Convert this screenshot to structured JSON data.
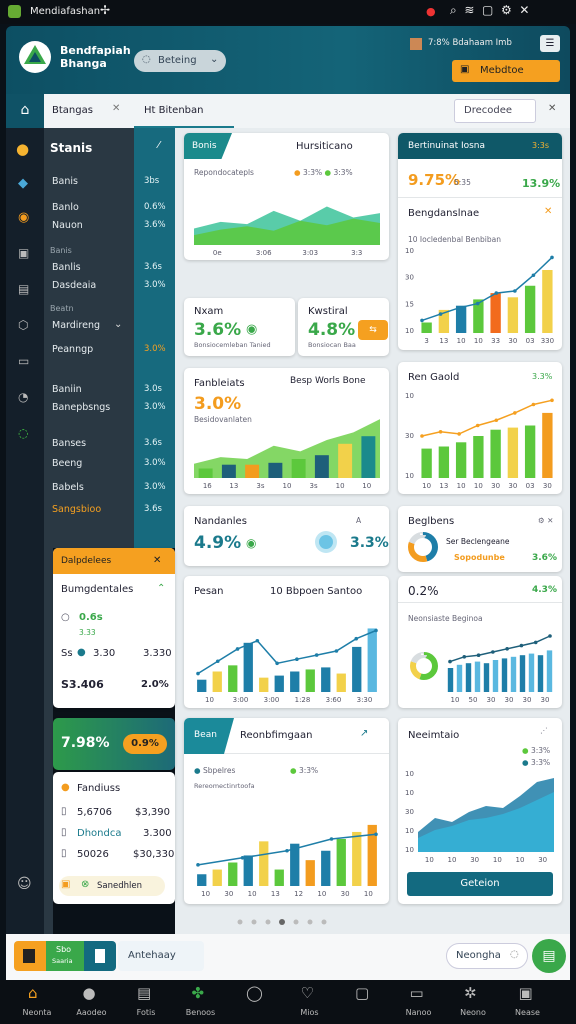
{
  "status_bar": {
    "app": "Mendiafashan"
  },
  "header": {
    "title": "Bendfapiah Bhanga",
    "selector": "Beteing",
    "status": "7:8% Bdahaam Imb",
    "action": "Mebdtoe"
  },
  "tabs": {
    "left": "Btangas",
    "active": "Ht Bitenban",
    "right": "Drecodee"
  },
  "sidebar": {
    "title": "Stanis",
    "items": [
      {
        "label": "Banis",
        "value": "3bs"
      },
      {
        "label": "Banlo",
        "value": "0.6%"
      },
      {
        "label": "Nauon",
        "value": "3.6%"
      },
      {
        "label": "Banis"
      },
      {
        "label": "Banlis",
        "value": "3.6s"
      },
      {
        "label": "Dasdeaia",
        "value": "3.0%"
      },
      {
        "label": "Beatn"
      },
      {
        "label": "Mardireng"
      },
      {
        "label": "Peanngp",
        "value": "3.0%"
      },
      {
        "label": "Baniin",
        "value": "3.0s"
      },
      {
        "label": "Banepbsngs",
        "value": "3.0%"
      },
      {
        "label": "Banses",
        "value": "3.6s"
      },
      {
        "label": "Beeng",
        "value": "3.0%"
      },
      {
        "label": "Babels",
        "value": "3.0%"
      },
      {
        "label": "Sangsbioo",
        "value": "3.6s"
      }
    ]
  },
  "card_a": {
    "tag": "Bonis",
    "title": "Hursiticano",
    "subtitle": "Repondocatepls",
    "legend": [
      "3:3%",
      "3:3%"
    ],
    "chart": {
      "ylim": [
        0,
        80
      ],
      "areas": [
        {
          "color": "#3cc39a",
          "values": [
            30,
            42,
            38,
            62,
            44,
            70,
            50,
            58
          ]
        },
        {
          "color": "#5cc83c",
          "values": [
            18,
            28,
            34,
            26,
            44,
            36,
            48,
            40
          ]
        }
      ],
      "x_labels": [
        "0e",
        "3:06",
        "3:03",
        "3:3"
      ]
    }
  },
  "card_b": {
    "title": "Bertinuinat Iosna",
    "badge": "3:3s",
    "metric": "9.75%",
    "metric_sub": "5:35",
    "change": "13.9%",
    "section": "Bengdanslnae",
    "chart_title": "10 Iocledenbal Benbiban",
    "chart": {
      "ylim": [
        0,
        80
      ],
      "bars": {
        "colors": [
          "#5cc83c",
          "#f2d14a",
          "#1e7ea8",
          "#5cc83c",
          "#f26b1d",
          "#f2d14a",
          "#5cc83c",
          "#f2d14a"
        ],
        "values": [
          10,
          22,
          26,
          32,
          38,
          34,
          45,
          60
        ]
      },
      "line": {
        "color": "#1e7ea8",
        "values": [
          12,
          18,
          24,
          28,
          38,
          40,
          55,
          72
        ]
      },
      "y_labels": [
        "10",
        "30",
        "15",
        "10"
      ],
      "x_labels": [
        "3",
        "13",
        "10",
        "10",
        "33",
        "30",
        "03",
        "330"
      ]
    }
  },
  "card_small_1": {
    "title": "Nxam",
    "value": "3.6%",
    "caption": "Bonsiocemleban Tanied"
  },
  "card_small_2": {
    "title": "Kwstiral",
    "value": "4.8%",
    "caption": "Bonsiocan Baa"
  },
  "card_c": {
    "title": "Fanbleiats",
    "label": "Besp Worls Bone",
    "value": "3.0%",
    "caption": "Besidovanlaten",
    "chart": {
      "ylim": [
        0,
        80
      ],
      "areas": [
        {
          "color": "#6fd04a",
          "values": [
            15,
            22,
            20,
            34,
            28,
            40,
            48,
            62
          ]
        }
      ],
      "bars": {
        "colors": [
          "#5cc83c",
          "#1e5f7a",
          "#f39c1f",
          "#1e5f7a",
          "#5cc83c",
          "#1e5f7a",
          "#f2d14a",
          "#1b8a8c"
        ],
        "values": [
          10,
          14,
          14,
          16,
          20,
          24,
          36,
          44
        ]
      },
      "x_labels": [
        "16",
        "13",
        "3s",
        "10",
        "3s",
        "10",
        "10"
      ]
    }
  },
  "card_d": {
    "title": "Ren Gaold",
    "badge": "3.3%",
    "chart": {
      "ylim": [
        0,
        80
      ],
      "bars": {
        "colors": [
          "#5cc83c",
          "#5cc83c",
          "#5cc83c",
          "#5cc83c",
          "#5cc83c",
          "#f2d14a",
          "#5cc83c",
          "#f39c1f"
        ],
        "values": [
          28,
          30,
          34,
          40,
          46,
          48,
          50,
          62
        ]
      },
      "line": {
        "color": "#f5a020",
        "values": [
          40,
          44,
          42,
          50,
          55,
          62,
          70,
          74
        ]
      },
      "y_labels": [
        "10",
        "30",
        "10"
      ],
      "x_labels": [
        "10",
        "13",
        "10",
        "10",
        "30",
        "30",
        "03",
        "30"
      ]
    }
  },
  "card_e": {
    "title": "Nandanles",
    "flag": "A",
    "value_left": "4.9%",
    "value_right": "3.3%"
  },
  "card_f": {
    "title": "Beglbens",
    "caption": "Ser Beclengeane",
    "sub": "Sopodunbe",
    "value": "3.6%",
    "donut": {
      "colors": [
        "#1e7ea8",
        "#f39c1f",
        "#d8dde0"
      ],
      "values": [
        45,
        35,
        20
      ]
    }
  },
  "card_g": {
    "title": "Pesan",
    "subtitle": "10 Bbpoen Santoo",
    "chart": {
      "ylim": [
        0,
        80
      ],
      "bars": {
        "colors": [
          "#1e7ea8",
          "#f2d14a",
          "#5cc83c",
          "#1e7ea8",
          "#f2d14a",
          "#1e7ea8",
          "#1e7ea8",
          "#5cc83c",
          "#1e7ea8",
          "#f2d14a",
          "#1e7ea8",
          "#5ab8e0"
        ],
        "values": [
          12,
          20,
          26,
          48,
          14,
          16,
          20,
          22,
          24,
          18,
          44,
          62
        ]
      },
      "line": {
        "color": "#1e7ea8",
        "values": [
          18,
          30,
          42,
          50,
          28,
          32,
          36,
          40,
          52,
          60
        ]
      },
      "x_labels": [
        "10",
        "3:00",
        "3:00",
        "1:28",
        "3:60",
        "3:30"
      ]
    }
  },
  "card_h": {
    "value": "0.2%",
    "change": "4.3%",
    "caption": "Neonsiaste Beginoa",
    "donut": {
      "colors": [
        "#5cc83c",
        "#f2d14a",
        "#d8dde0"
      ],
      "values": [
        55,
        25,
        20
      ]
    },
    "chart": {
      "ylim": [
        0,
        80
      ],
      "bars": {
        "colors": [
          "#1e7ea8",
          "#5ab8e0"
        ],
        "values": [
          30,
          34,
          36,
          38,
          36,
          40,
          42,
          44,
          46,
          48,
          46,
          52
        ]
      },
      "line": {
        "color": "#1e5f7a",
        "values": [
          38,
          44,
          46,
          50,
          54,
          58,
          62,
          70
        ]
      },
      "x_labels": [
        "10",
        "50",
        "30",
        "30",
        "30",
        "30"
      ]
    }
  },
  "card_i": {
    "tag": "Bean",
    "title": "Reonbfimgaan",
    "legend": [
      "Sbpelres",
      "3:3%"
    ],
    "caption": "Rereomectinrtoofa",
    "chart": {
      "ylim": [
        0,
        80
      ],
      "bars": {
        "colors": [
          "#1e7ea8",
          "#f2d14a",
          "#5cc83c",
          "#1e7ea8",
          "#f2d14a",
          "#5cc83c",
          "#1e7ea8",
          "#f39c1f",
          "#1e7ea8",
          "#5cc83c",
          "#f2d14a",
          "#f39c1f"
        ],
        "values": [
          10,
          14,
          20,
          26,
          38,
          14,
          36,
          22,
          30,
          40,
          46,
          52
        ]
      },
      "line": {
        "color": "#1e7ea8",
        "values": [
          18,
          24,
          30,
          40,
          44
        ]
      },
      "x_labels": [
        "10",
        "30",
        "10",
        "13",
        "12",
        "10",
        "30",
        "10"
      ]
    }
  },
  "card_j": {
    "title": "Neeimtaio",
    "legend": [
      "3:3%",
      "3:3%"
    ],
    "button": "Geteion",
    "chart": {
      "ylim": [
        0,
        80
      ],
      "areas": [
        {
          "color": "#1e7ea8",
          "values": [
            20,
            34,
            30,
            40,
            46,
            44,
            56,
            70,
            74
          ]
        },
        {
          "color": "#34b3d8",
          "values": [
            14,
            22,
            26,
            32,
            34,
            38,
            44,
            52,
            60
          ]
        }
      ],
      "y_labels": [
        "10",
        "10",
        "30",
        "10",
        "10"
      ],
      "x_labels": [
        "10",
        "10",
        "30",
        "10",
        "10",
        "30"
      ]
    }
  },
  "panel_k": {
    "title": "Dalpdelees",
    "section": "Bumgdentales",
    "rows": [
      "0.6s",
      "3.33",
      "Ss",
      "3.30",
      "3.330",
      "S3.406",
      "2.0%"
    ]
  },
  "panel_l": {
    "value": "7.98%",
    "badge": "0.9%"
  },
  "panel_m": {
    "rows": [
      {
        "label": "Fandiuss"
      },
      {
        "label": "5,6706",
        "value": "$3,390"
      },
      {
        "label": "Dhondca",
        "value": "3.300"
      },
      {
        "label": "50026",
        "value": "$30,330"
      }
    ],
    "button": "Sanedhlen"
  },
  "toolbar": {
    "tag_a": "Sbo",
    "tag_b": "Saaria",
    "search": "Antehaay",
    "select": "Neongha"
  },
  "nav": [
    "Neonta",
    "Aaodeo",
    "Fotis",
    "Benoos",
    "Mios",
    "Nanoo",
    "Neono",
    "Nease"
  ]
}
